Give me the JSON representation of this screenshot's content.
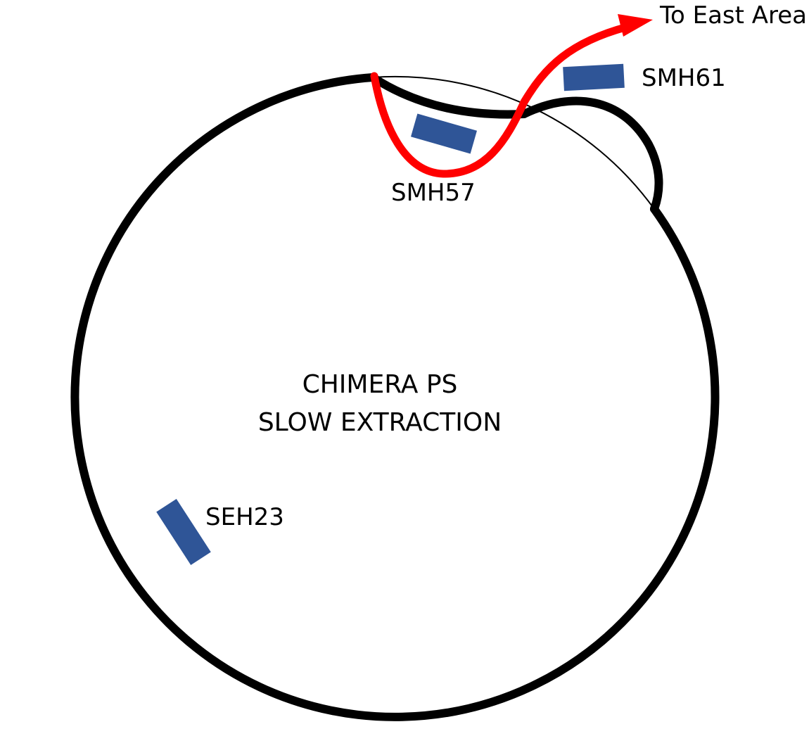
{
  "title_lines": [
    "CHIMERA PS",
    "SLOW EXTRACTION"
  ],
  "destination_label": "To East Area",
  "elements": {
    "septum_smh57": {
      "label": "SMH57"
    },
    "septum_smh61": {
      "label": "SMH61"
    },
    "septum_seh23": {
      "label": "SEH23"
    }
  },
  "colors": {
    "ring": "#000000",
    "extracted_beam": "#ff0000",
    "magnet": "#2f5597",
    "background": "#ffffff"
  }
}
